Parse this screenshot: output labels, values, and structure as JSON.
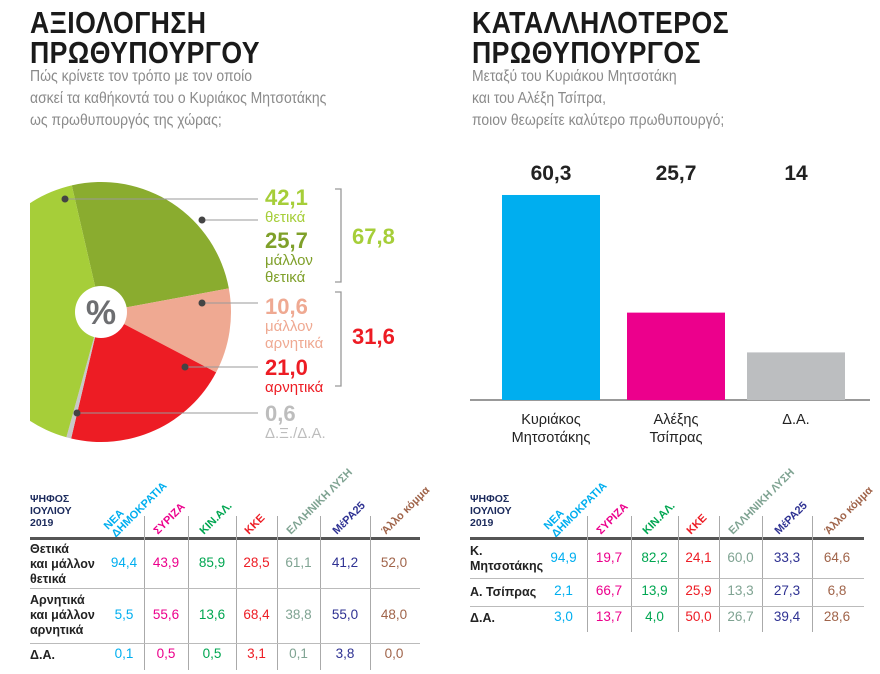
{
  "left": {
    "title_line1": "ΑΞΙΟΛΟΓΗΣΗ",
    "title_line2": "ΠΡΩΘΥΠΟΥΡΓΟΥ",
    "subtitle": [
      "Πώς κρίνετε τον τρόπο με τον οποίο",
      "ασκεί τα καθήκοντά του ο Κυριάκος Μητσοτάκης",
      "ως πρωθυπουργός της χώρας;"
    ],
    "center_symbol": "%",
    "total_positive": "67,8",
    "total_negative": "31,6"
  },
  "right": {
    "title_line1": "ΚΑΤΑΛΛΗΛΟΤΕΡΟΣ",
    "title_line2": "ΠΡΩΘΥΠΟΥΡΓΟΣ",
    "subtitle": [
      "Μεταξύ του Κυριάκου Μητσοτάκη",
      "και του Αλέξη Τσίπρα,",
      "ποιον θεωρείτε καλύτερο πρωθυπουργό;"
    ]
  },
  "chart_data": [
    {
      "type": "pie",
      "slices": [
        {
          "label": "θετικά",
          "value": 42.1,
          "display": "42,1",
          "color": "#A6CE39"
        },
        {
          "label": "μάλλον θετικά",
          "value": 25.7,
          "display": "25,7",
          "color": "#8AAC2F"
        },
        {
          "label": "μάλλον αρνητικά",
          "value": 10.6,
          "display": "10,6",
          "color": "#EFA992"
        },
        {
          "label": "αρνητικά",
          "value": 21.0,
          "display": "21,0",
          "color": "#ED1C24"
        },
        {
          "label": "Δ.Ξ./Δ.Α.",
          "value": 0.6,
          "display": "0,6",
          "color": "#C8C8C8"
        }
      ]
    },
    {
      "type": "bar",
      "categories": [
        "Κυριάκος Μητσοτάκης",
        "Αλέξης Τσίπρας",
        "Δ.Α."
      ],
      "category_lines": [
        [
          "Κυριάκος",
          "Μητσοτάκης"
        ],
        [
          "Αλέξης",
          "Τσίπρας"
        ],
        [
          "Δ.Α."
        ]
      ],
      "values": [
        60.3,
        25.7,
        14
      ],
      "value_labels": [
        "60,3",
        "25,7",
        "14"
      ],
      "colors": [
        "#00AEEF",
        "#EC008C",
        "#BCBEC0"
      ]
    }
  ],
  "parties": [
    {
      "lines": [
        "ΝΕΑ",
        "ΔΗΜΟΚΡΑΤΙΑ"
      ],
      "color": "#00AEEF"
    },
    {
      "lines": [
        "ΣΥΡΙΖΑ"
      ],
      "color": "#EC008C"
    },
    {
      "lines": [
        "ΚΙΝ.ΑΛ."
      ],
      "color": "#00A651"
    },
    {
      "lines": [
        "ΚΚΕ"
      ],
      "color": "#ED1C24"
    },
    {
      "lines": [
        "ΕΛΛΗΝΙΚΗ ΛΥΣΗ"
      ],
      "color": "#7FA392"
    },
    {
      "lines": [
        "ΜέΡΑ25"
      ],
      "color": "#2E3192"
    },
    {
      "lines": [
        "Άλλο κόμμα"
      ],
      "color": "#A0644A"
    }
  ],
  "table_header": "ΨΗΦΟΣ ΙΟΥΛΙΟΥ 2019",
  "table_left": {
    "rows": [
      {
        "label": [
          "Θετικά",
          "και μάλλον",
          "θετικά"
        ],
        "values": [
          "94,4",
          "43,9",
          "85,9",
          "28,5",
          "61,1",
          "41,2",
          "52,0"
        ]
      },
      {
        "label": [
          "Αρνητικά",
          "και μάλλον",
          "αρνητικά"
        ],
        "values": [
          "5,5",
          "55,6",
          "13,6",
          "68,4",
          "38,8",
          "55,0",
          "48,0"
        ]
      },
      {
        "label": [
          "Δ.Α."
        ],
        "values": [
          "0,1",
          "0,5",
          "0,5",
          "3,1",
          "0,1",
          "3,8",
          "0,0"
        ]
      }
    ]
  },
  "table_right": {
    "rows": [
      {
        "label": [
          "Κ.",
          "Μητσοτάκης"
        ],
        "values": [
          "94,9",
          "19,7",
          "82,2",
          "24,1",
          "60,0",
          "33,3",
          "64,6"
        ]
      },
      {
        "label": [
          "Α. Τσίπρας"
        ],
        "values": [
          "2,1",
          "66,7",
          "13,9",
          "25,9",
          "13,3",
          "27,3",
          "6,8"
        ]
      },
      {
        "label": [
          "Δ.Α."
        ],
        "values": [
          "3,0",
          "13,7",
          "4,0",
          "50,0",
          "26,7",
          "39,4",
          "28,6"
        ]
      }
    ]
  }
}
